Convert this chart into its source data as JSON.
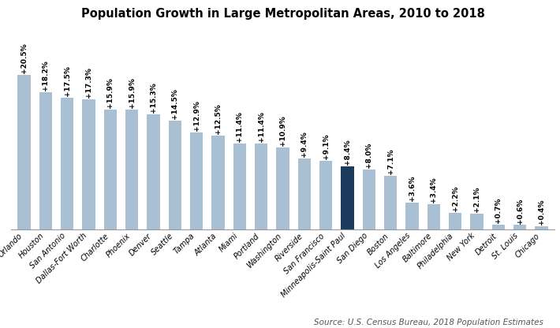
{
  "title": "Population Growth in Large Metropolitan Areas, 2010 to 2018",
  "source": "Source: U.S. Census Bureau, 2018 Population Estimates",
  "categories": [
    "Orlando",
    "Houston",
    "San Antonio",
    "Dallas-Fort Worth",
    "Charlotte",
    "Phoenix",
    "Denver",
    "Seattle",
    "Tampa",
    "Atlanta",
    "Miami",
    "Portland",
    "Washington",
    "Riverside",
    "San Francisco",
    "Minneapolis-Saint Paul",
    "San Diego",
    "Boston",
    "Los Angeles",
    "Baltimore",
    "Philadelphia",
    "New York",
    "Detroit",
    "St. Louis",
    "Chicago"
  ],
  "values": [
    20.5,
    18.2,
    17.5,
    17.3,
    15.9,
    15.9,
    15.3,
    14.5,
    12.9,
    12.5,
    11.4,
    11.4,
    10.9,
    9.4,
    9.1,
    8.4,
    8.0,
    7.1,
    3.6,
    3.4,
    2.2,
    2.1,
    0.7,
    0.6,
    0.4
  ],
  "labels": [
    "+20.5%",
    "+18.2%",
    "+17.5%",
    "+17.3%",
    "+15.9%",
    "+15.9%",
    "+15.3%",
    "+14.5%",
    "+12.9%",
    "+12.5%",
    "+11.4%",
    "+11.4%",
    "+10.9%",
    "+9.4%",
    "+9.1%",
    "+8.4%",
    "+8.0%",
    "+7.1%",
    "+3.6%",
    "+3.4%",
    "+2.2%",
    "+2.1%",
    "+0.7%",
    "+0.6%",
    "+0.4%"
  ],
  "highlight_index": 15,
  "bar_color": "#a8bfd4",
  "highlight_color": "#1b3a5c",
  "background_color": "#ffffff",
  "title_fontsize": 10.5,
  "label_fontsize": 6.5,
  "tick_fontsize": 7,
  "source_fontsize": 7.5
}
